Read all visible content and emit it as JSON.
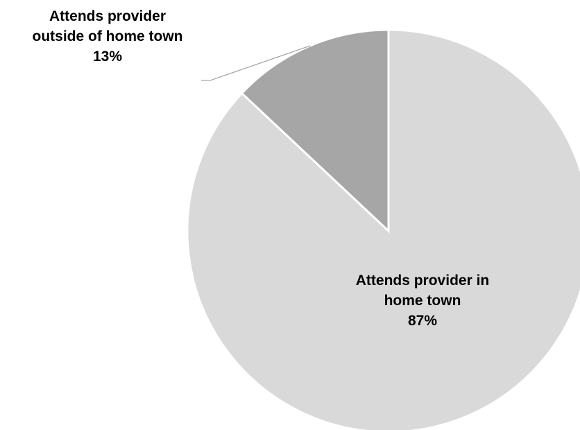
{
  "chart_data": {
    "type": "pie",
    "title": "",
    "categories": [
      "Attends provider in home town",
      "Attends provider outside of home town"
    ],
    "values": [
      87,
      13
    ],
    "unit": "%",
    "start": "12 o'clock",
    "direction": "clockwise",
    "legend": "none",
    "data_labels": [
      {
        "lines": [
          "Attends provider in",
          "home town"
        ],
        "value": "87%"
      },
      {
        "lines": [
          "Attends provider",
          "outside of home town"
        ],
        "value": "13%"
      }
    ],
    "colors": [
      "#d9d9d9",
      "#a6a6a6"
    ]
  }
}
